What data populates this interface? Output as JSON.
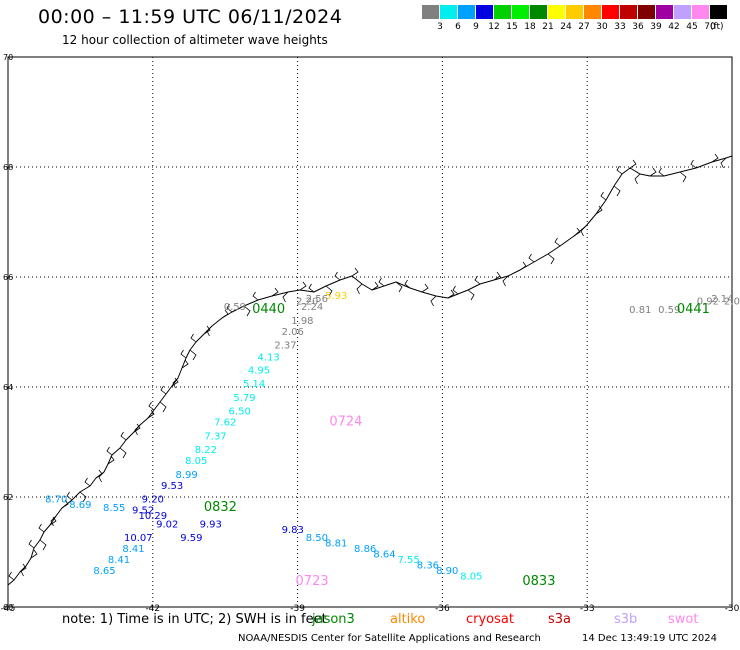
{
  "header": {
    "title": "00:00 – 11:59 UTC 06/11/2024",
    "subtitle": "12 hour collection of altimeter wave heights"
  },
  "color_scale": {
    "unit": "(ft)",
    "bins": [
      {
        "label": "3",
        "color": "#808080"
      },
      {
        "label": "6",
        "color": "#00eeee"
      },
      {
        "label": "9",
        "color": "#00a0ff"
      },
      {
        "label": "12",
        "color": "#0000e0"
      },
      {
        "label": "15",
        "color": "#00d000"
      },
      {
        "label": "18",
        "color": "#00ee00"
      },
      {
        "label": "21",
        "color": "#008800"
      },
      {
        "label": "24",
        "color": "#ffff00"
      },
      {
        "label": "27",
        "color": "#ffcc00"
      },
      {
        "label": "30",
        "color": "#ff8800"
      },
      {
        "label": "33",
        "color": "#ff0000"
      },
      {
        "label": "36",
        "color": "#c00000"
      },
      {
        "label": "39",
        "color": "#800000"
      },
      {
        "label": "42",
        "color": "#a000a0"
      },
      {
        "label": "45",
        "color": "#c0a0ff"
      },
      {
        "label": "70",
        "color": "#ff88ee"
      },
      {
        "label": "",
        "color": "#000000"
      }
    ]
  },
  "map": {
    "lon_range": [
      -45,
      -30
    ],
    "lat_range": [
      60,
      70
    ],
    "lon_ticks": [
      "-45",
      "-42",
      "-39",
      "-36",
      "-33",
      "-30"
    ],
    "lat_ticks": [
      "60",
      "62",
      "64",
      "66",
      "68",
      "70"
    ],
    "grid": true,
    "coastline_color": "#000000"
  },
  "chart_data": {
    "type": "scatter",
    "x_label": "",
    "y_label": "",
    "tracks": [
      {
        "name": "pass-0440",
        "label": "0440",
        "label_color": "#008800",
        "points": [
          {
            "lon": -38.2,
            "lat": 65.6,
            "value": "5.93",
            "color": "#ffcc00"
          },
          {
            "lon": -38.6,
            "lat": 65.55,
            "value": "2.56",
            "color": "#808080"
          },
          {
            "lon": -38.8,
            "lat": 65.5,
            "value": "2.20",
            "color": "#808080"
          },
          {
            "lon": -38.7,
            "lat": 65.4,
            "value": "2.24",
            "color": "#808080"
          },
          {
            "lon": -38.9,
            "lat": 65.15,
            "value": "1.98",
            "color": "#808080"
          },
          {
            "lon": -39.1,
            "lat": 64.95,
            "value": "2.06",
            "color": "#808080"
          },
          {
            "lon": -39.25,
            "lat": 64.7,
            "value": "2.37",
            "color": "#808080"
          },
          {
            "lon": -40.3,
            "lat": 65.4,
            "value": "0.59",
            "color": "#808080"
          },
          {
            "lon": -39.6,
            "lat": 64.48,
            "value": "4.13",
            "color": "#00eeee"
          },
          {
            "lon": -39.8,
            "lat": 64.25,
            "value": "4.95",
            "color": "#00eeee"
          },
          {
            "lon": -39.9,
            "lat": 64.0,
            "value": "5.14",
            "color": "#00eeee"
          },
          {
            "lon": -40.1,
            "lat": 63.75,
            "value": "5.79",
            "color": "#00eeee"
          },
          {
            "lon": -40.2,
            "lat": 63.5,
            "value": "6.50",
            "color": "#00eeee"
          },
          {
            "lon": -40.5,
            "lat": 63.3,
            "value": "7.62",
            "color": "#00eeee"
          },
          {
            "lon": -40.7,
            "lat": 63.05,
            "value": "7.37",
            "color": "#00eeee"
          },
          {
            "lon": -40.9,
            "lat": 62.8,
            "value": "8.22",
            "color": "#00eeee"
          },
          {
            "lon": -41.1,
            "lat": 62.6,
            "value": "8.05",
            "color": "#00eeee"
          },
          {
            "lon": -41.3,
            "lat": 62.35,
            "value": "8.99",
            "color": "#00a0ff"
          },
          {
            "lon": -41.6,
            "lat": 62.15,
            "value": "9.53",
            "color": "#0000e0"
          },
          {
            "lon": -42.0,
            "lat": 61.9,
            "value": "9.20",
            "color": "#0000e0"
          },
          {
            "lon": -42.2,
            "lat": 61.7,
            "value": "9.52",
            "color": "#0000e0"
          }
        ]
      },
      {
        "name": "pass-0441",
        "label": "0441",
        "label_color": "#008800",
        "points": [
          {
            "lon": -31.9,
            "lat": 65.35,
            "value": "0.81",
            "color": "#808080"
          },
          {
            "lon": -31.3,
            "lat": 65.35,
            "value": "0.59",
            "color": "#808080"
          },
          {
            "lon": -30.5,
            "lat": 65.5,
            "value": "0.92",
            "color": "#808080"
          },
          {
            "lon": -30.2,
            "lat": 65.55,
            "value": "2.14",
            "color": "#808080"
          },
          {
            "lon": -30.0,
            "lat": 65.5,
            "value": "2.0",
            "color": "#808080"
          }
        ]
      },
      {
        "name": "pass-0723",
        "label": "0723",
        "label_color": "#ff88ee",
        "points": [
          {
            "lon": -42.3,
            "lat": 61.2,
            "value": "10.07",
            "color": "#0000e0"
          },
          {
            "lon": -42.4,
            "lat": 61.0,
            "value": "8.41",
            "color": "#00a0ff"
          },
          {
            "lon": -42.7,
            "lat": 60.8,
            "value": "8.41",
            "color": "#00a0ff"
          },
          {
            "lon": -43.0,
            "lat": 60.6,
            "value": "8.65",
            "color": "#00a0ff"
          }
        ]
      },
      {
        "name": "pass-0724",
        "label": "0724",
        "label_color": "#ff88ee",
        "points": []
      },
      {
        "name": "pass-0832",
        "label": "0832",
        "label_color": "#008800",
        "points": [
          {
            "lon": -44.0,
            "lat": 61.9,
            "value": "8.70",
            "color": "#00a0ff"
          },
          {
            "lon": -43.5,
            "lat": 61.8,
            "value": "8.69",
            "color": "#00a0ff"
          },
          {
            "lon": -42.8,
            "lat": 61.75,
            "value": "8.55",
            "color": "#00a0ff"
          },
          {
            "lon": -42.0,
            "lat": 61.6,
            "value": "10.29",
            "color": "#0000e0"
          },
          {
            "lon": -41.7,
            "lat": 61.45,
            "value": "9.02",
            "color": "#0000e0"
          },
          {
            "lon": -41.2,
            "lat": 61.2,
            "value": "9.59",
            "color": "#0000e0"
          },
          {
            "lon": -40.8,
            "lat": 61.45,
            "value": "9.93",
            "color": "#0000e0"
          }
        ]
      },
      {
        "name": "pass-0833",
        "label": "0833",
        "label_color": "#008800",
        "points": [
          {
            "lon": -39.1,
            "lat": 61.35,
            "value": "9.83",
            "color": "#0000e0"
          },
          {
            "lon": -38.6,
            "lat": 61.2,
            "value": "8.50",
            "color": "#00a0ff"
          },
          {
            "lon": -38.2,
            "lat": 61.1,
            "value": "8.81",
            "color": "#00a0ff"
          },
          {
            "lon": -37.6,
            "lat": 61.0,
            "value": "8.86",
            "color": "#00a0ff"
          },
          {
            "lon": -37.2,
            "lat": 60.9,
            "value": "8.64",
            "color": "#00a0ff"
          },
          {
            "lon": -36.7,
            "lat": 60.8,
            "value": "7.55",
            "color": "#00eeee"
          },
          {
            "lon": -36.3,
            "lat": 60.7,
            "value": "8.36",
            "color": "#00a0ff"
          },
          {
            "lon": -35.9,
            "lat": 60.6,
            "value": "8.90",
            "color": "#00a0ff"
          },
          {
            "lon": -35.4,
            "lat": 60.5,
            "value": "8.05",
            "color": "#00eeee"
          }
        ]
      }
    ]
  },
  "footer": {
    "note_prefix": "note:  1) Time is in UTC; 2) SWH is in feet",
    "missions": [
      {
        "name": "jason3",
        "color": "#008800"
      },
      {
        "name": "altiko",
        "color": "#ff8800"
      },
      {
        "name": "cryosat",
        "color": "#ff0000"
      },
      {
        "name": "s3a",
        "color": "#c00000"
      },
      {
        "name": "s3b",
        "color": "#c0a0ff"
      },
      {
        "name": "swot",
        "color": "#ff88ee"
      }
    ],
    "credit": "NOAA/NESDIS Center for Satellite Applications and Research",
    "timestamp": "14 Dec 13:49:19 UTC 2024"
  }
}
